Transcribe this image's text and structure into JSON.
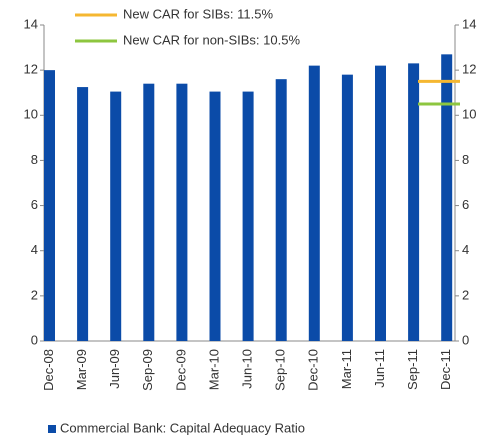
{
  "chart_data": {
    "type": "bar",
    "categories": [
      "Dec-08",
      "Mar-09",
      "Jun-09",
      "Sep-09",
      "Dec-09",
      "Mar-10",
      "Jun-10",
      "Sep-10",
      "Dec-10",
      "Mar-11",
      "Jun-11",
      "Sep-11",
      "Dec-11"
    ],
    "series": [
      {
        "name": "Commercial Bank: Capital Adequacy Ratio",
        "color": "#0b4ba8",
        "values": [
          12.0,
          11.25,
          11.05,
          11.4,
          11.4,
          11.05,
          11.05,
          11.6,
          12.2,
          11.8,
          12.2,
          12.3,
          12.7
        ]
      }
    ],
    "reference_lines": [
      {
        "name": "New CAR for SIBs: 11.5%",
        "color": "#f5b731",
        "value": 11.5
      },
      {
        "name": "New CAR for non-SIBs: 10.5%",
        "color": "#8dc63f",
        "value": 10.5
      }
    ],
    "ylim": [
      0,
      14
    ],
    "yticks": [
      0,
      2,
      4,
      6,
      8,
      10,
      12,
      14
    ],
    "y2lim": [
      0,
      14
    ],
    "y2ticks": [
      0,
      2,
      4,
      6,
      8,
      10,
      12,
      14
    ]
  }
}
